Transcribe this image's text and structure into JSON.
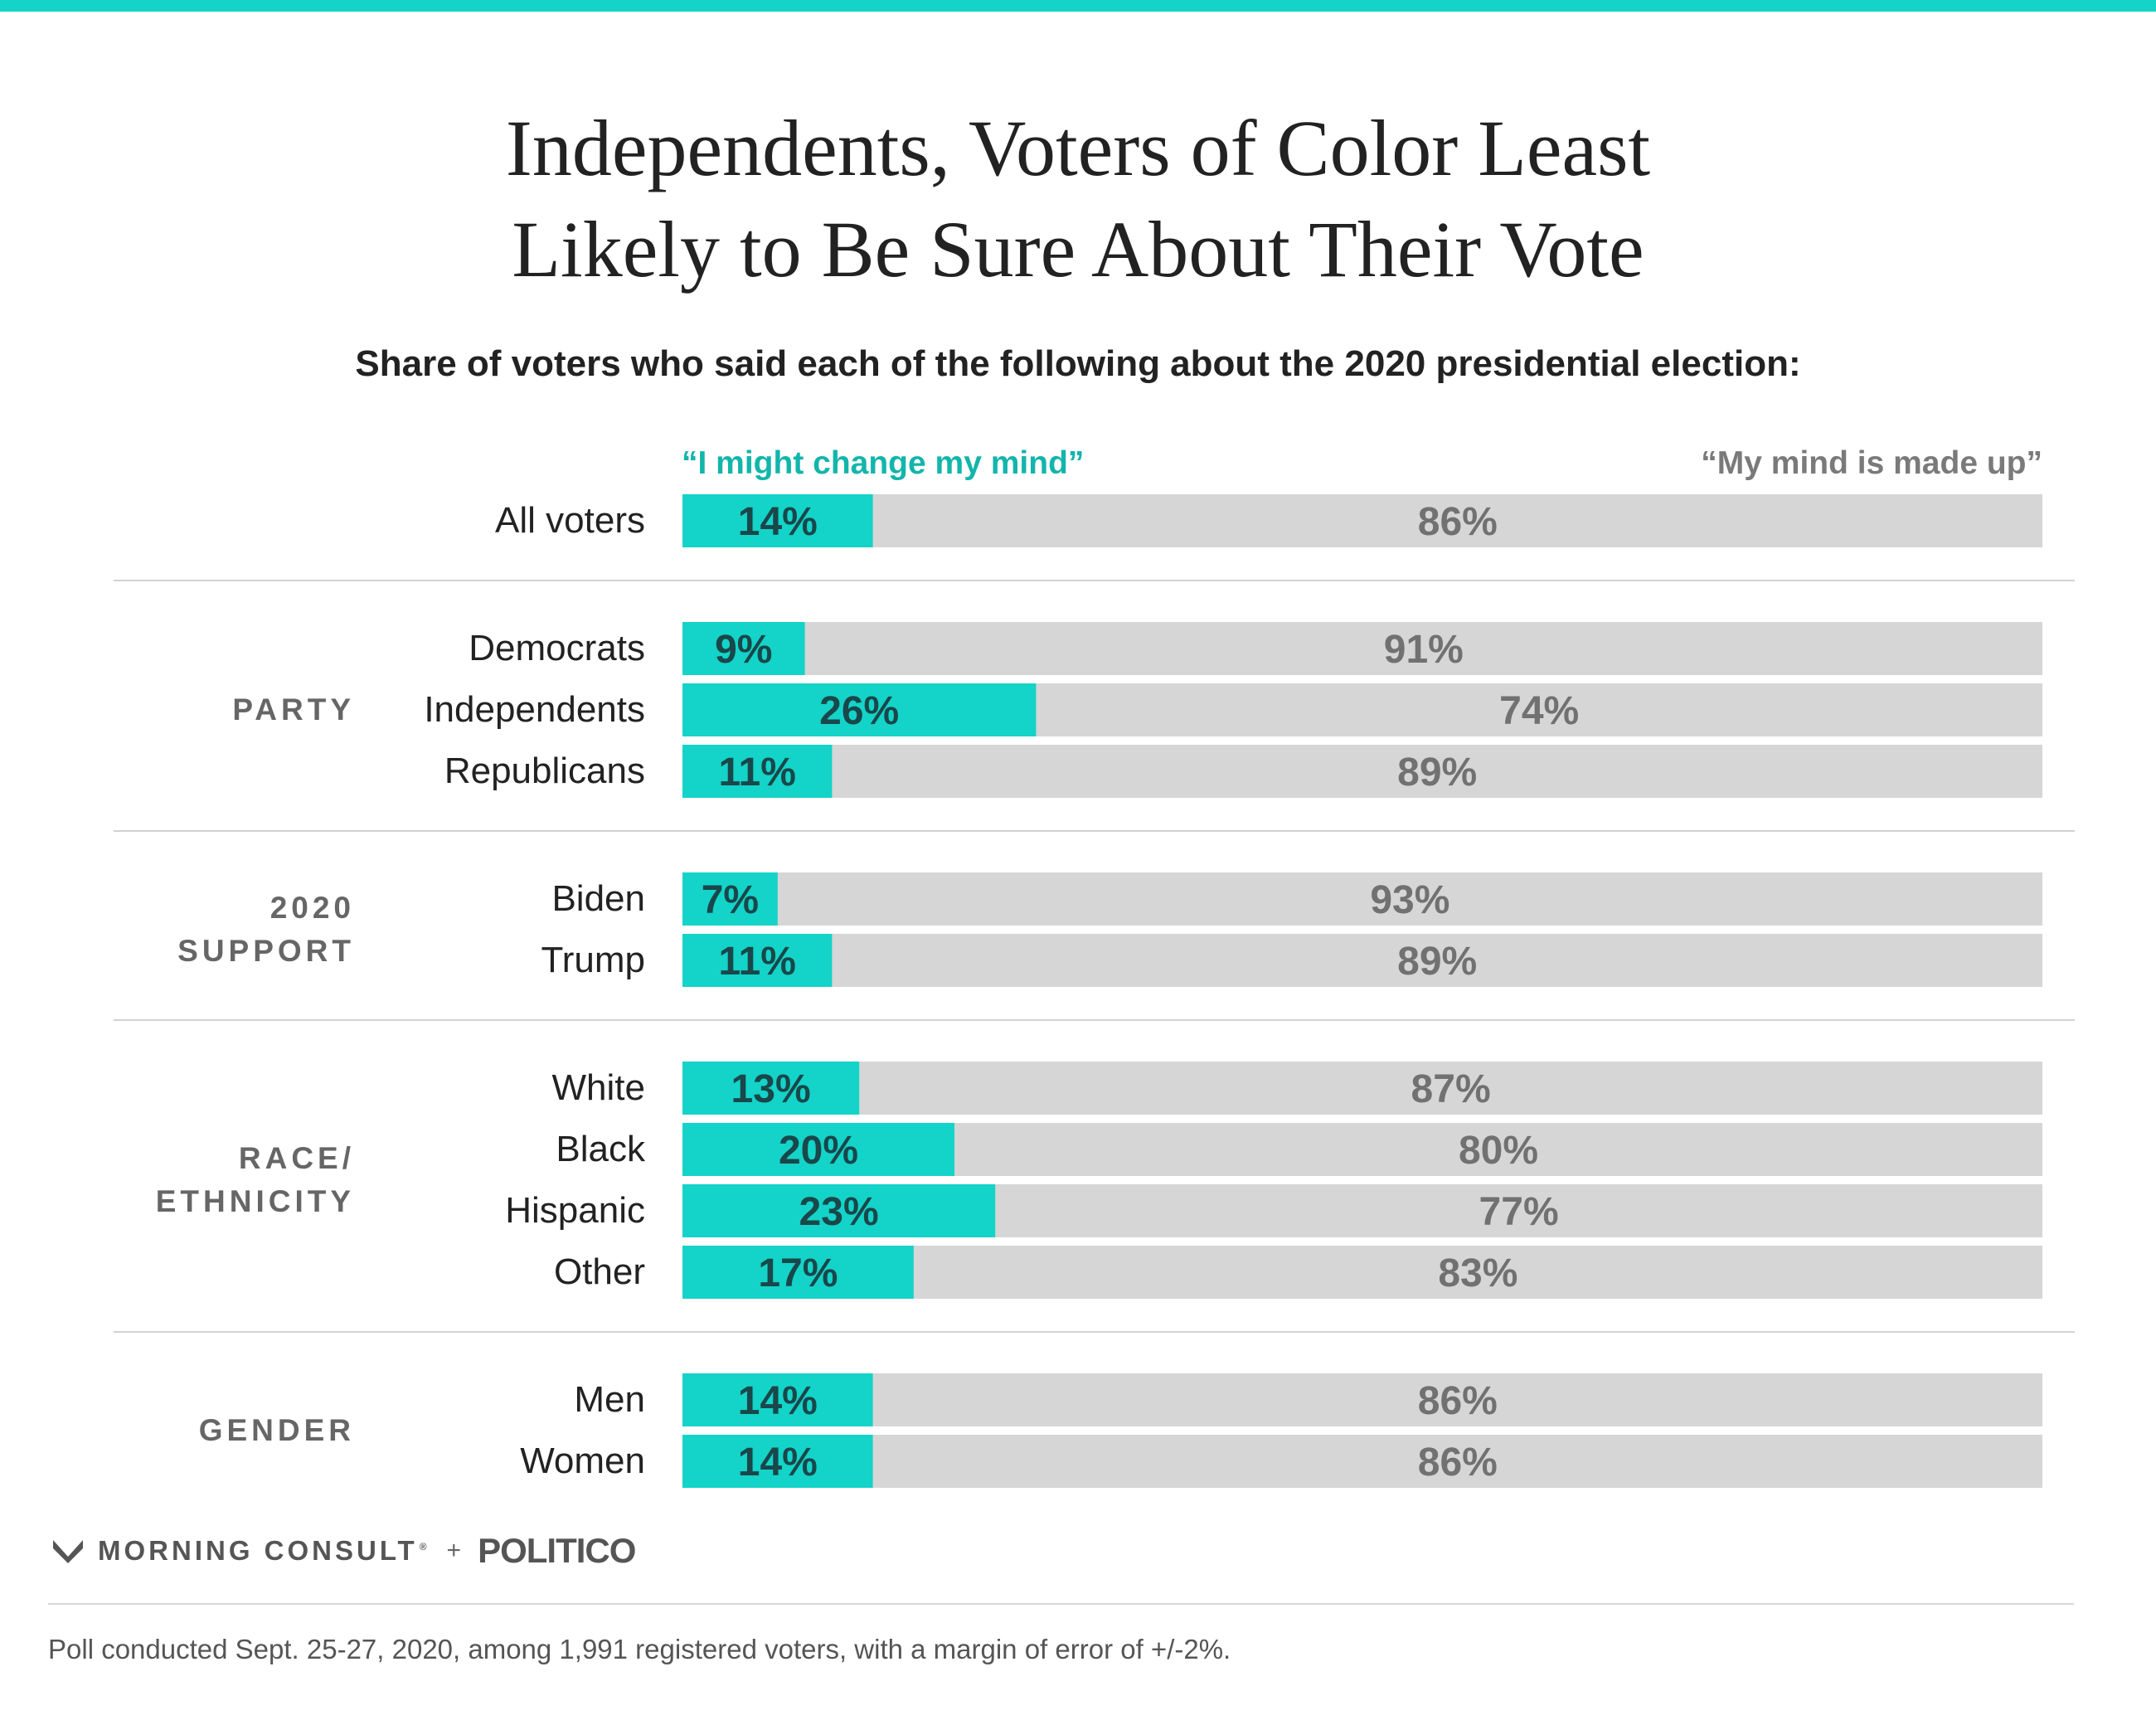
{
  "colors": {
    "accent": "#14d3c8",
    "accent_text": "#19474a",
    "gray_bar": "#d6d6d6",
    "gray_text": "#717171",
    "legend_right": "#7a7a7a",
    "legend_left": "#13b5ab"
  },
  "header": {
    "title_line1": "Independents, Voters of Color Least",
    "title_line2": "Likely to Be Sure About Their Vote",
    "subtitle": "Share of voters who said each of the following about the 2020 presidential election:"
  },
  "legend": {
    "left": "“I might change my mind”",
    "right": "“My mind is made up”"
  },
  "chart_data": {
    "type": "bar",
    "orientation": "horizontal",
    "stacked": true,
    "series": [
      {
        "name": "“I might change my mind”",
        "values": [
          14,
          9,
          26,
          11,
          7,
          11,
          13,
          20,
          23,
          17,
          14,
          14
        ]
      },
      {
        "name": "“My mind is made up”",
        "values": [
          86,
          91,
          74,
          89,
          93,
          89,
          87,
          80,
          77,
          83,
          86,
          86
        ]
      }
    ],
    "groups": [
      {
        "label_lines": [],
        "rows": [
          {
            "label": "All voters",
            "change": 14,
            "made_up": 86
          }
        ]
      },
      {
        "label_lines": [
          "PARTY"
        ],
        "rows": [
          {
            "label": "Democrats",
            "change": 9,
            "made_up": 91
          },
          {
            "label": "Independents",
            "change": 26,
            "made_up": 74
          },
          {
            "label": "Republicans",
            "change": 11,
            "made_up": 89
          }
        ]
      },
      {
        "label_lines": [
          "2020",
          "SUPPORT"
        ],
        "rows": [
          {
            "label": "Biden",
            "change": 7,
            "made_up": 93
          },
          {
            "label": "Trump",
            "change": 11,
            "made_up": 89
          }
        ]
      },
      {
        "label_lines": [
          "RACE/",
          "ETHNICITY"
        ],
        "rows": [
          {
            "label": "White",
            "change": 13,
            "made_up": 87
          },
          {
            "label": "Black",
            "change": 20,
            "made_up": 80
          },
          {
            "label": "Hispanic",
            "change": 23,
            "made_up": 77
          },
          {
            "label": "Other",
            "change": 17,
            "made_up": 83
          }
        ]
      },
      {
        "label_lines": [
          "GENDER"
        ],
        "rows": [
          {
            "label": "Men",
            "change": 14,
            "made_up": 86
          },
          {
            "label": "Women",
            "change": 14,
            "made_up": 86
          }
        ]
      }
    ],
    "xlim": [
      0,
      100
    ],
    "value_suffix": "%"
  },
  "footer": {
    "brand1": "MORNING CONSULT",
    "trademark": "®",
    "plus": "+",
    "brand2": "POLITICO",
    "note": "Poll conducted Sept. 25-27, 2020, among 1,991 registered voters, with a margin of error of +/-2%."
  }
}
